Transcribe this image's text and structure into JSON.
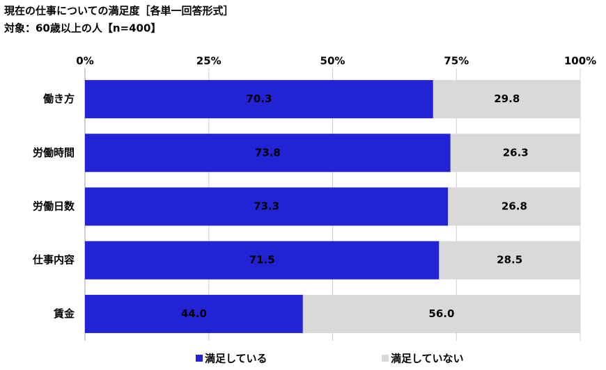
{
  "chart_data": {
    "type": "stacked-bar-horizontal",
    "title": "現在の仕事についての満足度［各単一回答形式］",
    "subtitle": "対象：60歳以上の人【n=400】",
    "categories": [
      "働き方",
      "労働時間",
      "労働日数",
      "仕事内容",
      "賃金"
    ],
    "series": [
      {
        "name": "満足している",
        "color": "#2323d6",
        "values": [
          70.3,
          73.8,
          73.3,
          71.5,
          44.0
        ],
        "value_labels": [
          "70.3",
          "73.8",
          "73.3",
          "71.5",
          "44.0"
        ]
      },
      {
        "name": "満足していない",
        "color": "#d9d9d9",
        "values": [
          29.8,
          26.3,
          26.8,
          28.5,
          56.0
        ],
        "value_labels": [
          "29.8",
          "26.3",
          "26.8",
          "28.5",
          "56.0"
        ]
      }
    ],
    "xlim": [
      0,
      100
    ],
    "xticks": [
      {
        "value": 0,
        "label": "0%"
      },
      {
        "value": 25,
        "label": "25%"
      },
      {
        "value": 50,
        "label": "50%"
      },
      {
        "value": 75,
        "label": "75%"
      },
      {
        "value": 100,
        "label": "100%"
      }
    ],
    "grid": true
  }
}
